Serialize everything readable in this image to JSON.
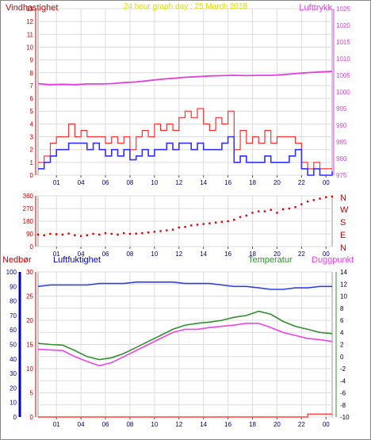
{
  "charts": {
    "wind": {
      "title": "24 hour graph day : 25 March 2018",
      "left_label": "Vindhastighet",
      "right_label": "Lufttrykk"
    },
    "direction": {
      "compass_labels": [
        "N",
        "W",
        "S",
        "E",
        "N"
      ]
    },
    "bottom": {
      "rain_label": "Nedbør",
      "humidity_label": "Luftfuktighet",
      "temp_label": "Temperatur",
      "dew_label": "Duggpunkt"
    }
  },
  "colors": {
    "wind_gust": "#ff3030",
    "wind_avg": "#3030ff",
    "pressure": "#e040e0",
    "direction": "#e00000",
    "humidity": "#3040e0",
    "temperature": "#309030",
    "dewpoint": "#ee44ee",
    "rain": "#ff4040",
    "title": "#e0e000",
    "left_axis": "#cc0000",
    "rain_axis": "#0000cc",
    "right_axis_dark": "#000000"
  },
  "chart_data": [
    {
      "type": "line",
      "title": "24 hour graph day : 25 March 2018",
      "x_ticks": [
        "01",
        "04",
        "06",
        "08",
        "10",
        "12",
        "14",
        "16",
        "18",
        "20",
        "22",
        "00"
      ],
      "x_range": [
        0,
        24
      ],
      "ylabel_left": "Vindhastighet",
      "ylim_left": [
        0,
        13
      ],
      "y_ticks_left": [
        0,
        1,
        2,
        3,
        4,
        5,
        6,
        7,
        8,
        9,
        10,
        11,
        12,
        13
      ],
      "ylabel_right": "Lufttrykk",
      "ylim_right": [
        975,
        1025
      ],
      "y_ticks_right": [
        975,
        980,
        985,
        990,
        995,
        1000,
        1005,
        1010,
        1015,
        1020,
        1025
      ],
      "grid": true,
      "series": [
        {
          "axis": "right",
          "x": [
            0,
            1,
            2,
            3,
            4,
            5,
            6,
            7,
            8,
            9,
            10,
            11,
            12,
            13,
            14,
            15,
            16,
            17,
            18,
            19,
            20,
            21,
            22,
            23,
            24
          ],
          "values": [
            1002.5,
            1002.2,
            1002.3,
            1002.2,
            1002.4,
            1002.4,
            1002.5,
            1002.8,
            1003,
            1003.4,
            1003.8,
            1004.1,
            1004.4,
            1004.6,
            1004.8,
            1004.9,
            1005,
            1004.9,
            1005,
            1005,
            1005.2,
            1005.5,
            1005.8,
            1006,
            1006.2
          ]
        },
        {
          "axis": "left",
          "x": [
            0,
            0.5,
            1,
            1.5,
            2,
            2.5,
            3,
            3.5,
            4,
            4.5,
            5,
            5.5,
            6,
            6.5,
            7,
            7.5,
            8,
            8.5,
            9,
            9.5,
            10,
            10.5,
            11,
            11.5,
            12,
            12.5,
            13,
            13.5,
            14,
            14.5,
            15,
            15.5,
            16,
            16.5,
            17,
            17.5,
            18,
            18.5,
            19,
            19.5,
            20,
            20.5,
            21,
            21.5,
            22,
            22.5,
            23,
            23.5,
            24
          ],
          "values": [
            1,
            1.5,
            2.5,
            3,
            3,
            4,
            3,
            3.5,
            3,
            3,
            3,
            2.5,
            3,
            2.5,
            3,
            2,
            3,
            3.5,
            3,
            4,
            3.5,
            4,
            3.5,
            4.5,
            5,
            4.5,
            5.2,
            4,
            3.5,
            4.5,
            4,
            5,
            2,
            3.5,
            2.5,
            3,
            2.5,
            3.5,
            2.5,
            3,
            3,
            3,
            2.5,
            1,
            0.5,
            1,
            0.5,
            0.5,
            0.5
          ]
        },
        {
          "axis": "left",
          "x": [
            0,
            0.5,
            1,
            1.5,
            2,
            2.5,
            3,
            3.5,
            4,
            4.5,
            5,
            5.5,
            6,
            6.5,
            7,
            7.5,
            8,
            8.5,
            9,
            9.5,
            10,
            10.5,
            11,
            11.5,
            12,
            12.5,
            13,
            13.5,
            14,
            14.5,
            15,
            15.5,
            16,
            16.5,
            17,
            17.5,
            18,
            18.5,
            19,
            19.5,
            20,
            20.5,
            21,
            21.5,
            22,
            22.5,
            23,
            23.5,
            24
          ],
          "values": [
            0.5,
            1,
            1.5,
            2,
            2,
            2.5,
            2.5,
            2.5,
            2,
            2.5,
            2,
            1.5,
            2,
            1.5,
            2,
            1.2,
            1.5,
            2,
            1.5,
            2,
            2,
            2.5,
            2,
            2.5,
            2.5,
            2,
            2.5,
            2,
            2,
            2,
            2.5,
            3,
            1,
            1.5,
            1,
            1,
            1,
            1.5,
            1,
            1,
            1,
            1.5,
            2,
            0.5,
            0,
            0.5,
            0,
            0,
            0.3
          ]
        }
      ]
    },
    {
      "type": "scatter",
      "x_ticks": [
        "01",
        "04",
        "06",
        "08",
        "10",
        "12",
        "14",
        "16",
        "18",
        "20",
        "22",
        "00"
      ],
      "x_range": [
        0,
        24
      ],
      "ylim": [
        0,
        360
      ],
      "y_ticks": [
        0,
        90,
        180,
        270,
        360
      ],
      "compass_labels": [
        "N",
        "W",
        "S",
        "E",
        "N"
      ],
      "series": [
        {
          "x": [
            0,
            0.5,
            1,
            1.5,
            2,
            2.5,
            3,
            3.5,
            4,
            4.5,
            5,
            5.5,
            6,
            6.5,
            7,
            7.5,
            8,
            8.5,
            9,
            9.5,
            10,
            10.5,
            11,
            11.5,
            12,
            12.5,
            13,
            13.5,
            14,
            14.5,
            15,
            15.5,
            16,
            16.5,
            17,
            17.5,
            18,
            18.5,
            19,
            19.5,
            20,
            20.5,
            21,
            21.5,
            22,
            22.5,
            23,
            23.5,
            24
          ],
          "values": [
            85,
            80,
            90,
            88,
            85,
            92,
            80,
            75,
            80,
            90,
            85,
            95,
            90,
            85,
            95,
            90,
            92,
            95,
            100,
            105,
            110,
            115,
            120,
            135,
            140,
            150,
            155,
            160,
            165,
            170,
            175,
            180,
            190,
            210,
            220,
            240,
            250,
            250,
            260,
            240,
            265,
            270,
            280,
            300,
            320,
            330,
            340,
            350,
            355
          ]
        }
      ]
    },
    {
      "type": "line",
      "x_ticks": [
        "01",
        "04",
        "06",
        "08",
        "10",
        "12",
        "14",
        "16",
        "18",
        "20",
        "22",
        "00"
      ],
      "x_range": [
        0,
        24
      ],
      "ylabel_left": "Nedbør",
      "ylim_rain": [
        0,
        30
      ],
      "y_ticks_rain": [
        0,
        5,
        10,
        15,
        20,
        25,
        30
      ],
      "ylim_humidity": [
        0,
        100
      ],
      "y_ticks_humidity": [
        0,
        10,
        20,
        30,
        40,
        50,
        60,
        70,
        80,
        90,
        100
      ],
      "ylim_temp": [
        -10,
        14
      ],
      "y_ticks_temp": [
        -10,
        -8,
        -6,
        -4,
        -2,
        0,
        2,
        4,
        6,
        8,
        10,
        12,
        14
      ],
      "grid": true,
      "series": [
        {
          "name": "Luftfuktighet",
          "axis": "humidity",
          "x": [
            0,
            1,
            2,
            3,
            4,
            5,
            6,
            7,
            8,
            9,
            10,
            11,
            12,
            13,
            14,
            15,
            16,
            17,
            18,
            19,
            20,
            21,
            22,
            23,
            24
          ],
          "values": [
            90,
            91,
            91,
            91,
            91,
            92,
            92,
            92,
            93,
            93,
            93,
            93,
            92,
            92,
            92,
            91,
            90,
            90,
            89,
            88,
            88,
            89,
            89,
            90,
            90
          ]
        },
        {
          "name": "Temperatur",
          "axis": "temp",
          "x": [
            0,
            1,
            2,
            3,
            4,
            5,
            6,
            7,
            8,
            9,
            10,
            11,
            12,
            13,
            14,
            15,
            16,
            17,
            18,
            19,
            20,
            21,
            22,
            23,
            24
          ],
          "values": [
            2.2,
            2,
            1.9,
            1,
            0,
            -0.5,
            -0.2,
            0.5,
            1.5,
            2.5,
            3.5,
            4.5,
            5.2,
            5.5,
            5.7,
            6,
            6.5,
            6.8,
            7.5,
            7,
            5.8,
            5,
            4.5,
            4,
            3.8
          ]
        },
        {
          "name": "Duggpunkt",
          "axis": "temp",
          "x": [
            0,
            1,
            2,
            3,
            4,
            5,
            6,
            7,
            8,
            9,
            10,
            11,
            12,
            13,
            14,
            15,
            16,
            17,
            18,
            19,
            20,
            21,
            22,
            23,
            24
          ],
          "values": [
            1.2,
            1.1,
            1,
            0,
            -0.8,
            -1.5,
            -1,
            0,
            1,
            2,
            3,
            4,
            4.5,
            4.5,
            4.8,
            5,
            5.2,
            5.5,
            5.5,
            4.8,
            4,
            3.5,
            3,
            2.8,
            2.5
          ]
        },
        {
          "name": "Nedbør",
          "axis": "rain",
          "x": [
            0,
            21.5,
            22,
            24
          ],
          "values": [
            0,
            0,
            0.6,
            0.6
          ]
        }
      ]
    }
  ]
}
